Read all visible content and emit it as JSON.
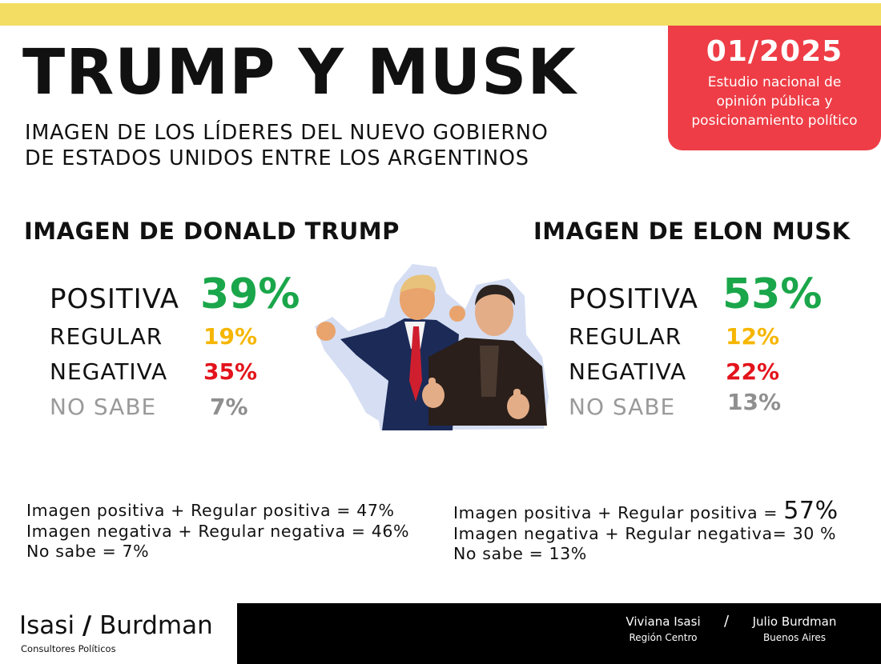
{
  "header": {
    "title": "TRUMP Y MUSK",
    "subtitle_line1": "IMAGEN DE LOS LÍDERES DEL NUEVO GOBIERNO",
    "subtitle_line2": "DE ESTADOS UNIDOS ENTRE LOS ARGENTINOS"
  },
  "study": {
    "date": "01/2025",
    "desc_line1": "Estudio nacional de",
    "desc_line2": "opinión pública y",
    "desc_line3": "posicionamiento político"
  },
  "trump": {
    "heading": "IMAGEN DE DONALD TRUMP",
    "positiva_label": "POSITIVA",
    "positiva_value": "39%",
    "regular_label": "REGULAR",
    "regular_value": "19%",
    "negativa_label": "NEGATIVA",
    "negativa_value": "35%",
    "nosabe_label": "NO SABE",
    "nosabe_value": "7%",
    "summary_line1": "Imagen positiva + Regular positiva = 47%",
    "summary_line2": "Imagen negativa + Regular negativa = 46%",
    "summary_line3": "No sabe = 7%"
  },
  "musk": {
    "heading": "IMAGEN DE ELON MUSK",
    "positiva_label": "POSITIVA",
    "positiva_value": "53%",
    "regular_label": "REGULAR",
    "regular_value": "12%",
    "negativa_label": "NEGATIVA",
    "negativa_value": "22%",
    "nosabe_label": "NO SABE",
    "nosabe_value": "13%",
    "summary_line1_prefix": "Imagen positiva + Regular positiva = ",
    "summary_line1_value": "57%",
    "summary_line2": "Imagen negativa + Regular negativa= 30 %",
    "summary_line3": "No sabe = 13%"
  },
  "footer": {
    "brand_left": "Isasi",
    "brand_slash": "/",
    "brand_right": "Burdman",
    "brand_sub": "Consultores Políticos",
    "author1_name": "Viviana Isasi",
    "author1_region": "Región Centro",
    "separator": "/",
    "author2_name": "Julio Burdman",
    "author2_region": "Buenos Aires"
  },
  "colors": {
    "accent_yellow": "#f3dd63",
    "accent_red": "#ee3d46",
    "positive": "#1aa64a",
    "regular": "#f6b600",
    "negative": "#e3131b",
    "unknown": "#8f8f8f"
  }
}
